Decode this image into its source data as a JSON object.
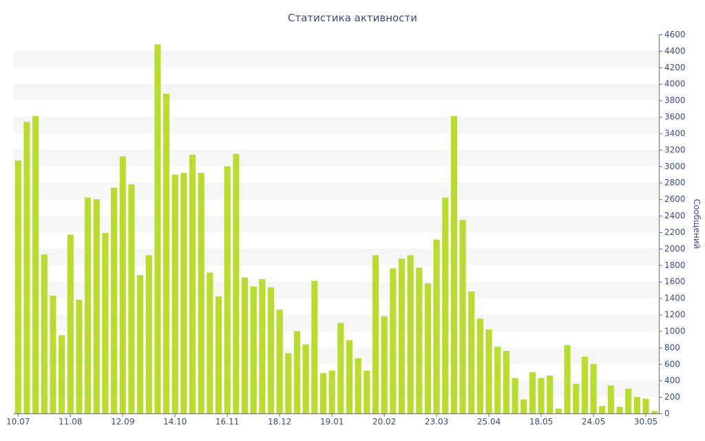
{
  "chart_data": {
    "type": "bar",
    "title": "Статистика активности",
    "xlabel": "",
    "ylabel": "Сообщений",
    "ylim": [
      0,
      4600
    ],
    "y_ticks": [
      0,
      200,
      400,
      600,
      800,
      1000,
      1200,
      1400,
      1600,
      1800,
      2000,
      2200,
      2400,
      2600,
      2800,
      3000,
      3200,
      3400,
      3600,
      3800,
      4000,
      4200,
      4400,
      4600
    ],
    "x_tick_labels": [
      {
        "index": 0,
        "label": "10.07"
      },
      {
        "index": 6,
        "label": "11.08"
      },
      {
        "index": 12,
        "label": "12.09"
      },
      {
        "index": 18,
        "label": "14.10"
      },
      {
        "index": 24,
        "label": "16.11"
      },
      {
        "index": 30,
        "label": "18.12"
      },
      {
        "index": 36,
        "label": "19.01"
      },
      {
        "index": 42,
        "label": "20.02"
      },
      {
        "index": 48,
        "label": "23.03"
      },
      {
        "index": 54,
        "label": "25.04"
      },
      {
        "index": 60,
        "label": "18.05"
      },
      {
        "index": 66,
        "label": "24.05"
      },
      {
        "index": 72,
        "label": "30.05"
      }
    ],
    "values": [
      3070,
      3540,
      3610,
      1930,
      1430,
      950,
      2170,
      1380,
      2620,
      2600,
      2190,
      2740,
      3120,
      2780,
      1680,
      1920,
      4480,
      3880,
      2900,
      2920,
      3140,
      2920,
      1710,
      1420,
      3000,
      3150,
      1650,
      1540,
      1630,
      1530,
      1260,
      730,
      1000,
      840,
      1610,
      490,
      520,
      1100,
      890,
      670,
      520,
      1920,
      1180,
      1760,
      1880,
      1920,
      1770,
      1580,
      2110,
      2620,
      3610,
      2350,
      1480,
      1150,
      1020,
      810,
      760,
      430,
      170,
      500,
      430,
      460,
      60,
      830,
      360,
      690,
      600,
      90,
      340,
      80,
      300,
      200,
      180,
      30
    ],
    "grid": "horizontal-bands",
    "legend": "none",
    "colors": {
      "bar": "#b8dd2c",
      "band": "#f6f6f6",
      "axis": "#6b6b6b",
      "text": "#3b4a8c"
    }
  }
}
